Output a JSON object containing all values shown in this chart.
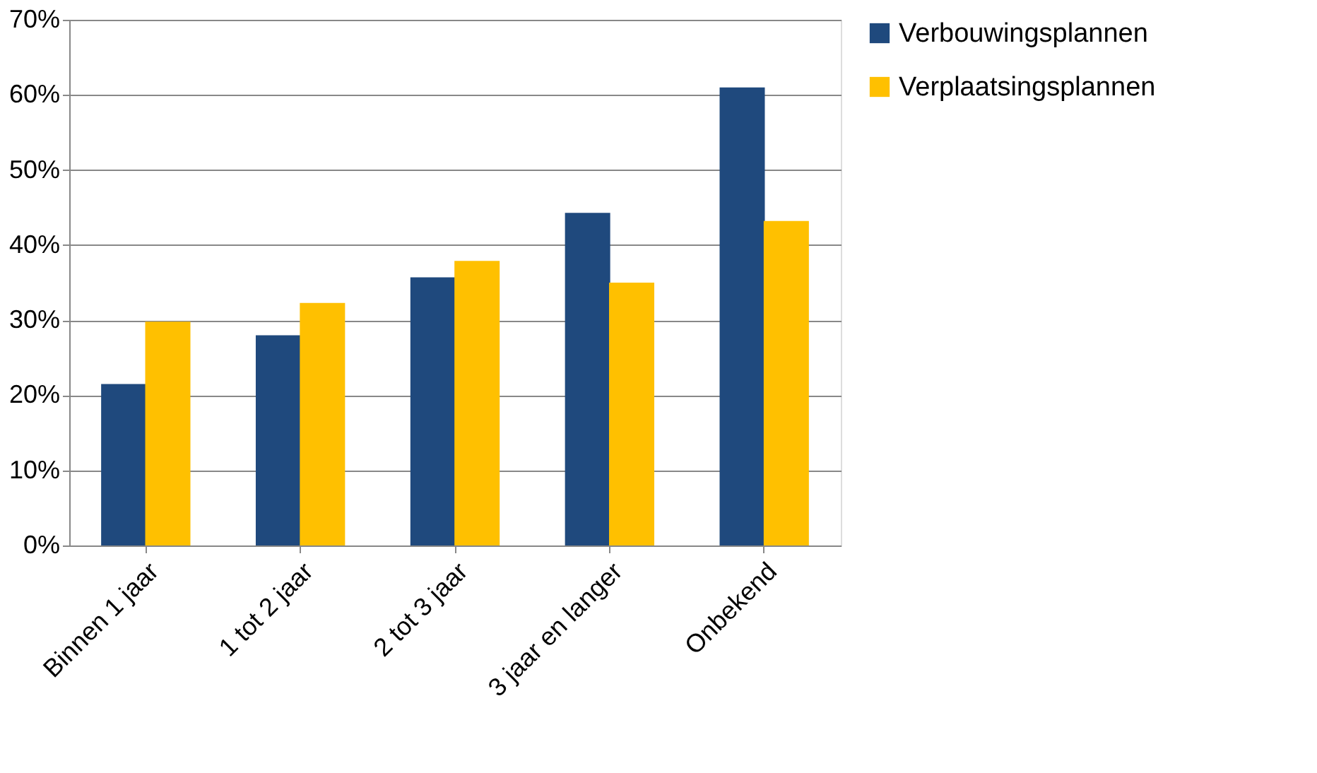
{
  "chart_data": {
    "type": "bar",
    "categories": [
      "Binnen 1 jaar",
      "1 tot 2 jaar",
      "2 tot 3 jaar",
      "3 jaar en langer",
      "Onbekend"
    ],
    "series": [
      {
        "name": "Verbouwingsplannen",
        "color": "#1f497d",
        "values": [
          21.5,
          28,
          35.7,
          44.3,
          61
        ]
      },
      {
        "name": "Verplaatsingsplannen",
        "color": "#ffc000",
        "values": [
          29.8,
          32.3,
          37.9,
          35,
          43.2
        ]
      }
    ],
    "ylim": [
      0,
      70
    ],
    "yticks": [
      {
        "value": 0,
        "label": "0%"
      },
      {
        "value": 10,
        "label": "10%"
      },
      {
        "value": 20,
        "label": "20%"
      },
      {
        "value": 30,
        "label": "30%"
      },
      {
        "value": 40,
        "label": "40%"
      },
      {
        "value": 50,
        "label": "50%"
      },
      {
        "value": 60,
        "label": "60%"
      },
      {
        "value": 70,
        "label": "70%"
      }
    ],
    "grid": "y",
    "legend": "right"
  }
}
